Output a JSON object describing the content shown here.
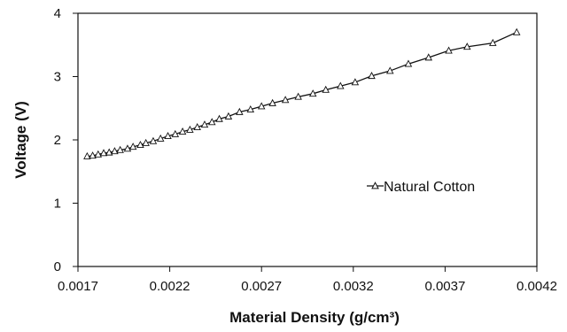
{
  "chart_data": {
    "type": "line",
    "title": "",
    "xlabel": "Material Density (g/cm³)",
    "ylabel": "Voltage (V)",
    "xlim": [
      0.0017,
      0.0042
    ],
    "ylim": [
      0,
      4
    ],
    "xticks": [
      "0.0017",
      "0.0022",
      "0.0027",
      "0.0032",
      "0.0037",
      "0.0042"
    ],
    "yticks": [
      "0",
      "1",
      "2",
      "3",
      "4"
    ],
    "grid": false,
    "legend_position": "right",
    "series": [
      {
        "name": "Natural Cotton",
        "marker": "triangle",
        "x": [
          0.00175,
          0.00178,
          0.00181,
          0.00184,
          0.00187,
          0.0019,
          0.00193,
          0.00197,
          0.002,
          0.00204,
          0.00207,
          0.00211,
          0.00215,
          0.00219,
          0.00223,
          0.00227,
          0.00231,
          0.00235,
          0.00239,
          0.00243,
          0.00247,
          0.00252,
          0.00258,
          0.00264,
          0.0027,
          0.00276,
          0.00283,
          0.0029,
          0.00298,
          0.00305,
          0.00313,
          0.00321,
          0.0033,
          0.0034,
          0.0035,
          0.00361,
          0.00372,
          0.00382,
          0.00396,
          0.00409
        ],
        "y": [
          1.74,
          1.75,
          1.77,
          1.79,
          1.8,
          1.82,
          1.84,
          1.86,
          1.89,
          1.92,
          1.95,
          1.98,
          2.02,
          2.06,
          2.09,
          2.13,
          2.16,
          2.2,
          2.24,
          2.28,
          2.33,
          2.37,
          2.44,
          2.48,
          2.53,
          2.58,
          2.63,
          2.68,
          2.73,
          2.79,
          2.85,
          2.91,
          3.01,
          3.09,
          3.2,
          3.3,
          3.41,
          3.47,
          3.53,
          3.7
        ]
      }
    ]
  }
}
